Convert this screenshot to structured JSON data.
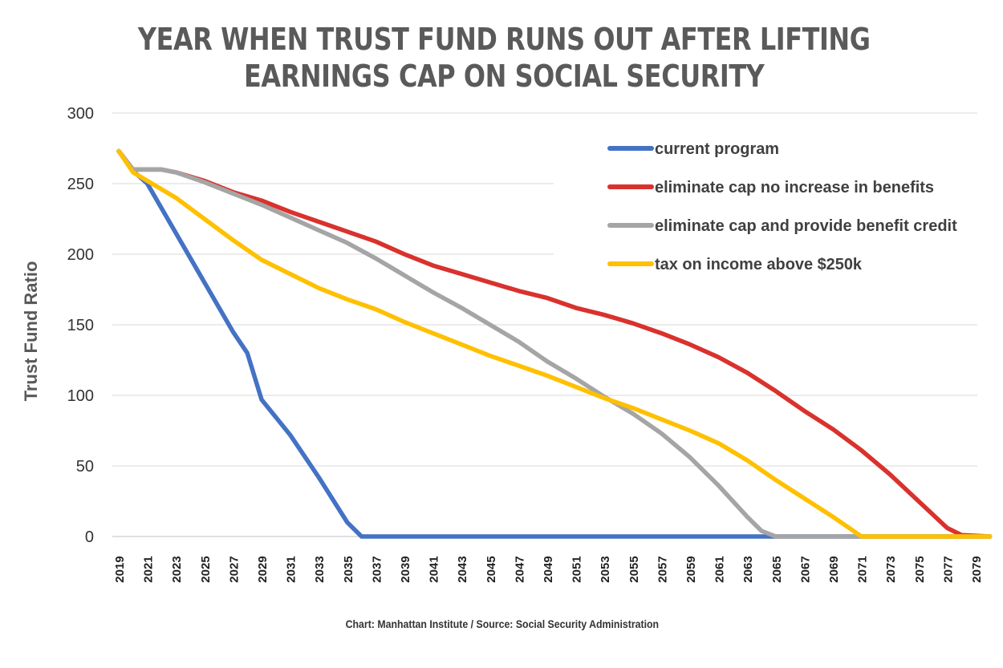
{
  "title_lines": [
    "YEAR WHEN TRUST FUND RUNS OUT AFTER LIFTING",
    "EARNINGS CAP ON SOCIAL SECURITY"
  ],
  "source": "Chart: Manhattan Institute / Source: Social Security Administration",
  "chart_data": {
    "type": "line",
    "title": "YEAR WHEN TRUST FUND RUNS OUT AFTER LIFTING EARNINGS CAP ON SOCIAL SECURITY",
    "xlabel": "",
    "ylabel": "Trust Fund Ratio",
    "ylim": [
      0,
      300
    ],
    "yticks": [
      0,
      50,
      100,
      150,
      200,
      250,
      300
    ],
    "xlim": [
      2019,
      2080
    ],
    "xticks": [
      "2019",
      "2021",
      "2023",
      "2025",
      "2027",
      "2029",
      "2031",
      "2033",
      "2035",
      "2037",
      "2039",
      "2041",
      "2043",
      "2045",
      "2047",
      "2049",
      "2051",
      "2053",
      "2055",
      "2057",
      "2059",
      "2061",
      "2063",
      "2065",
      "2067",
      "2069",
      "2071",
      "2073",
      "2075",
      "2077",
      "2079"
    ],
    "grid": true,
    "legend_position": "top-right",
    "series": [
      {
        "name": "current program",
        "color": "#4472c4",
        "x": [
          2019,
          2020,
          2021,
          2023,
          2025,
          2027,
          2028,
          2029,
          2031,
          2033,
          2035,
          2036,
          2080
        ],
        "y": [
          273,
          259,
          250,
          215,
          180,
          145,
          130,
          97,
          72,
          42,
          10,
          0,
          0
        ]
      },
      {
        "name": "eliminate cap no increase in benefits",
        "color": "#d9322d",
        "x": [
          2019,
          2020,
          2021,
          2022,
          2023,
          2025,
          2027,
          2029,
          2031,
          2033,
          2035,
          2037,
          2039,
          2041,
          2043,
          2045,
          2047,
          2049,
          2051,
          2053,
          2055,
          2057,
          2059,
          2061,
          2063,
          2065,
          2067,
          2069,
          2071,
          2073,
          2075,
          2077,
          2078,
          2080
        ],
        "y": [
          273,
          260,
          260,
          260,
          258,
          252,
          244,
          238,
          230,
          223,
          216,
          209,
          200,
          192,
          186,
          180,
          174,
          169,
          162,
          157,
          151,
          144,
          136,
          127,
          116,
          103,
          89,
          76,
          61,
          44,
          25,
          6,
          1,
          0
        ]
      },
      {
        "name": "eliminate cap and provide benefit credit",
        "color": "#a5a5a5",
        "x": [
          2019,
          2020,
          2021,
          2022,
          2023,
          2025,
          2027,
          2029,
          2031,
          2033,
          2035,
          2037,
          2039,
          2041,
          2043,
          2045,
          2047,
          2049,
          2051,
          2053,
          2055,
          2057,
          2059,
          2061,
          2063,
          2064,
          2065,
          2080
        ],
        "y": [
          273,
          260,
          260,
          260,
          258,
          251,
          243,
          235,
          226,
          217,
          208,
          197,
          185,
          173,
          162,
          150,
          138,
          124,
          112,
          99,
          87,
          73,
          56,
          36,
          14,
          4,
          0,
          0
        ]
      },
      {
        "name": "tax on income above $250k",
        "color": "#ffc000",
        "x": [
          2019,
          2020,
          2021,
          2023,
          2025,
          2027,
          2029,
          2031,
          2033,
          2035,
          2037,
          2039,
          2041,
          2043,
          2045,
          2047,
          2049,
          2051,
          2053,
          2055,
          2057,
          2059,
          2061,
          2063,
          2065,
          2067,
          2069,
          2071,
          2080
        ],
        "y": [
          273,
          258,
          252,
          240,
          225,
          210,
          196,
          186,
          176,
          168,
          161,
          152,
          144,
          136,
          128,
          121,
          114,
          106,
          98,
          91,
          83,
          75,
          66,
          54,
          40,
          27,
          14,
          0,
          0
        ]
      }
    ]
  }
}
